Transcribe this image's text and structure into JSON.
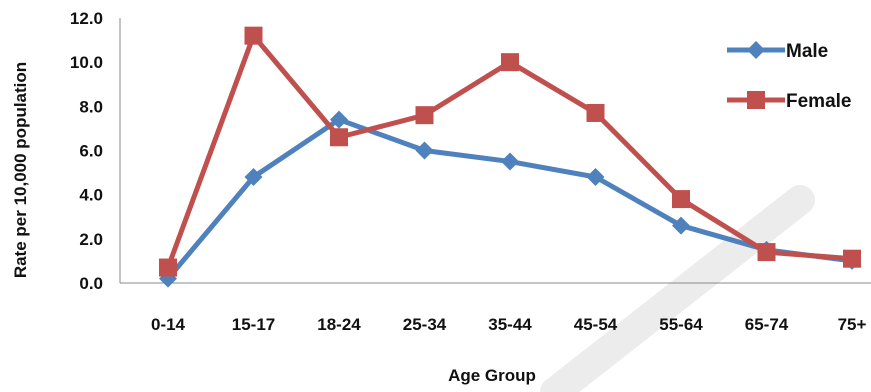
{
  "chart_data": {
    "type": "line",
    "title": "",
    "xlabel": "Age Group",
    "ylabel": "Rate per 10,000 population",
    "categories": [
      "0-14",
      "15-17",
      "18-24",
      "25-34",
      "35-44",
      "45-54",
      "55-64",
      "65-74",
      "75+"
    ],
    "y_tick_labels": [
      "0.0",
      "2.0",
      "4.0",
      "6.0",
      "8.0",
      "10.0",
      "12.0"
    ],
    "ylim": [
      0,
      12
    ],
    "grid": false,
    "legend_position": "top-right",
    "series": [
      {
        "name": "Male",
        "color": "#4F81BD",
        "marker": "diamond",
        "values": [
          0.2,
          4.8,
          7.4,
          6.0,
          5.5,
          4.8,
          2.6,
          1.5,
          1.0
        ]
      },
      {
        "name": "Female",
        "color": "#C0504D",
        "marker": "square",
        "values": [
          0.7,
          11.2,
          6.6,
          7.6,
          10.0,
          7.7,
          3.8,
          1.4,
          1.1
        ]
      }
    ]
  }
}
